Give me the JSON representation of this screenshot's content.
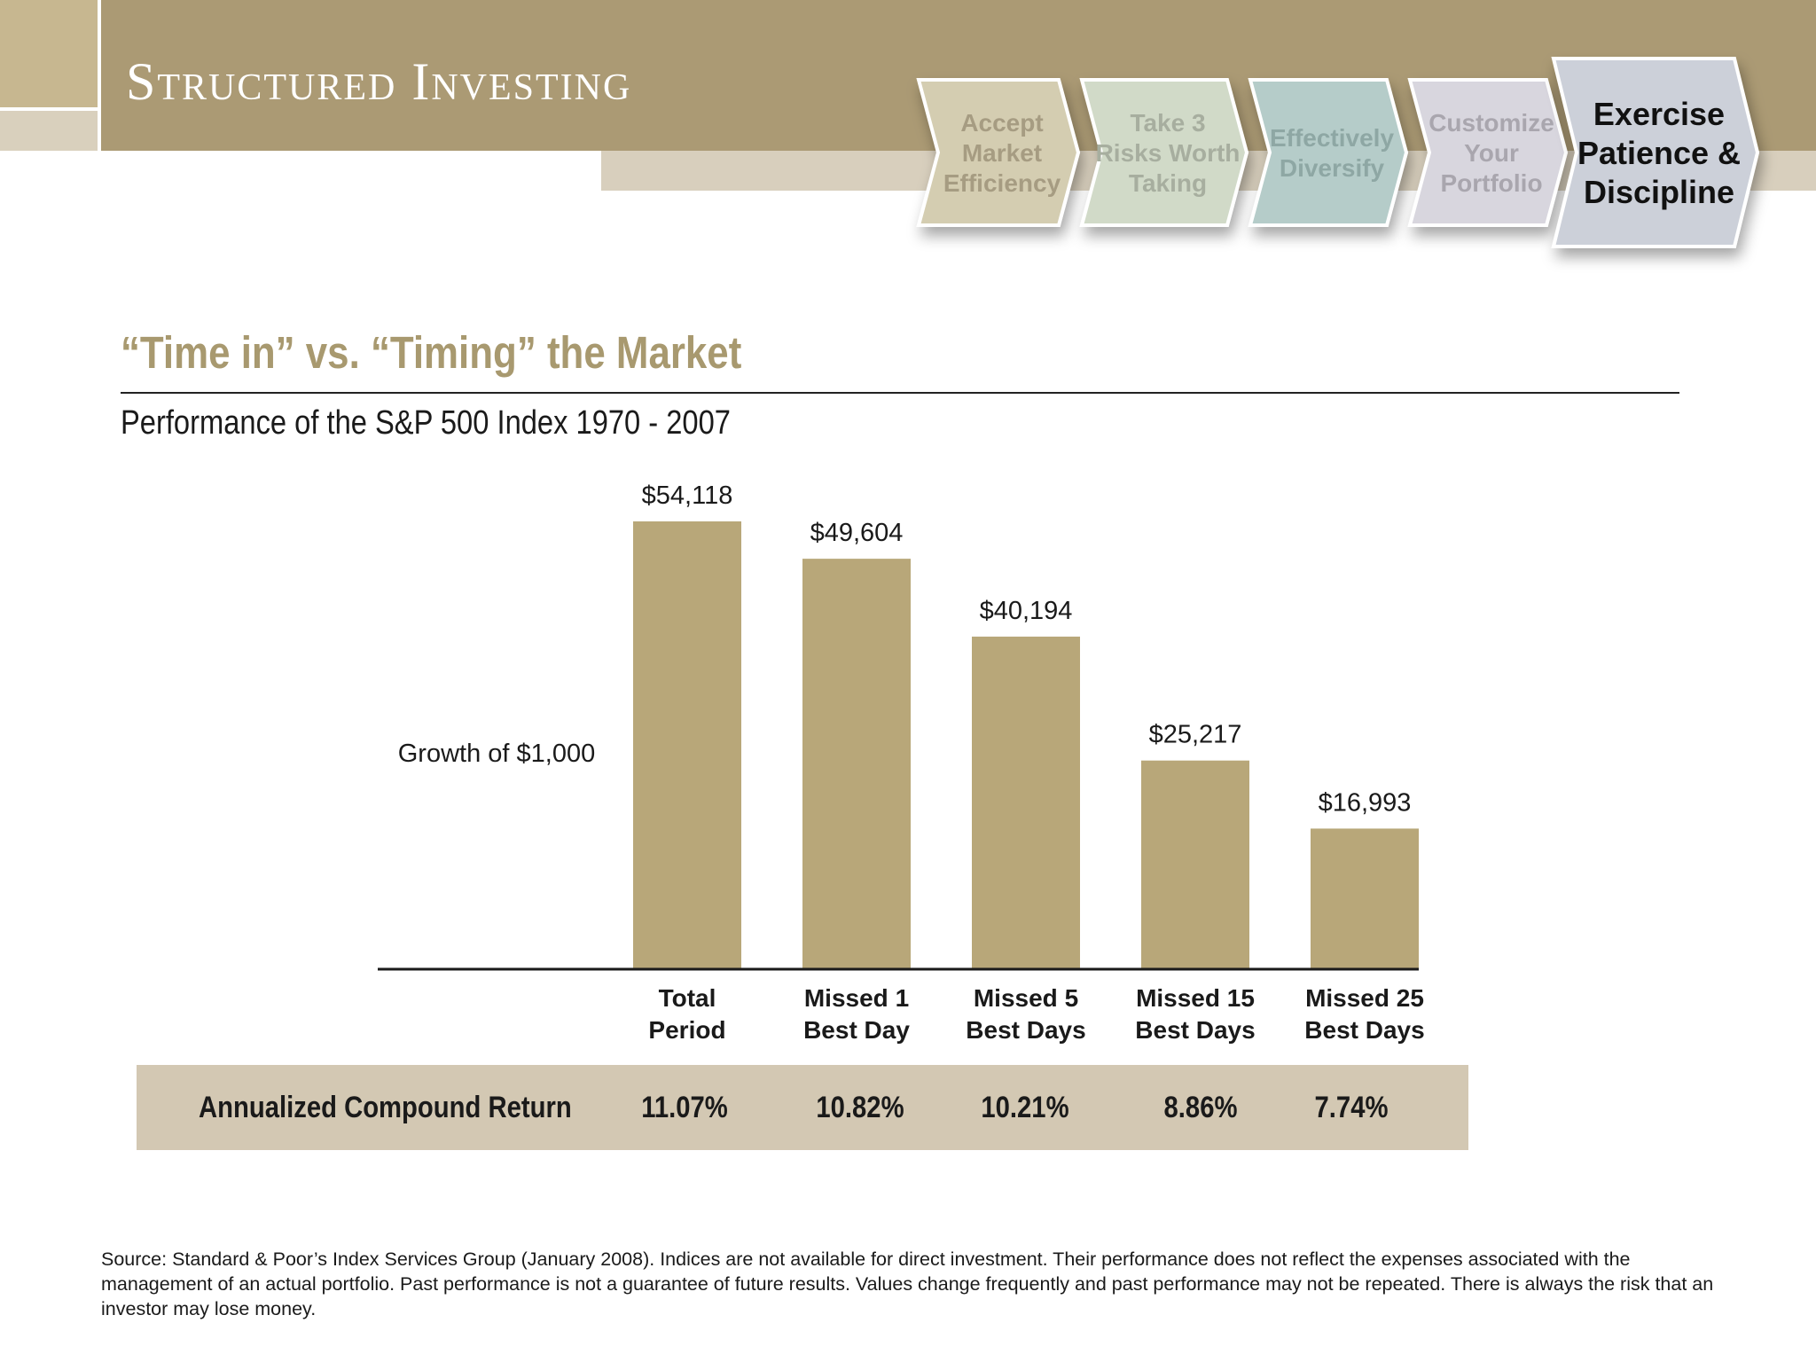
{
  "header": {
    "brand": "Structured Investing",
    "steps": [
      {
        "lines": [
          "Accept",
          "Market",
          "Efficiency"
        ],
        "fill": "#d4cdb1",
        "text_color": "#a69c82",
        "active": false
      },
      {
        "lines": [
          "Take 3",
          "Risks Worth",
          "Taking"
        ],
        "fill": "#d1dac8",
        "text_color": "#a7ae9f",
        "active": false
      },
      {
        "lines": [
          "Effectively",
          "Diversify"
        ],
        "fill": "#b5ccc9",
        "text_color": "#8ea7a4",
        "active": false
      },
      {
        "lines": [
          "Customize",
          "Your",
          "Portfolio"
        ],
        "fill": "#d8d6de",
        "text_color": "#a9a6ae",
        "active": false
      },
      {
        "lines": [
          "Exercise",
          "Patience &",
          "Discipline"
        ],
        "fill": "#ccd0d9",
        "text_color": "#111111",
        "active": true
      }
    ]
  },
  "slide": {
    "title": "“Time in” vs. “Timing” the Market",
    "subtitle": "Performance of the S&P 500 Index 1970 - 2007"
  },
  "chart_data": {
    "type": "bar",
    "categories": [
      "Total Period",
      "Missed 1 Best Day",
      "Missed 5 Best Days",
      "Missed 15 Best Days",
      "Missed 25 Best Days"
    ],
    "category_lines": [
      [
        "Total",
        "Period"
      ],
      [
        "Missed 1",
        "Best Day"
      ],
      [
        "Missed 5",
        "Best Days"
      ],
      [
        "Missed 15",
        "Best Days"
      ],
      [
        "Missed 25",
        "Best Days"
      ]
    ],
    "values": [
      54118,
      49604,
      40194,
      25217,
      16993
    ],
    "value_labels": [
      "$54,118",
      "$49,604",
      "$40,194",
      "$25,217",
      "$16,993"
    ],
    "ylabel": "Growth of $1,000",
    "ylim": [
      0,
      54118
    ],
    "grid": false,
    "bar_color": "#b8a779"
  },
  "returns": {
    "label": "Annualized Compound Return",
    "values": [
      "11.07%",
      "10.82%",
      "10.21%",
      "8.86%",
      "7.74%"
    ]
  },
  "footer": {
    "source": "Source: Standard & Poor’s Index Services Group (January 2008). Indices are not available for direct investment. Their performance does not reflect the expenses associated with the management of an actual portfolio. Past performance is not a guarantee of future results. Values change frequently and past performance may not be repeated. There is always the risk that an investor may lose money."
  },
  "colors": {
    "header_band": "#ab9a74",
    "header_strip": "#d8cfbd",
    "title": "#a8996f",
    "returns_band": "#d3c8b3"
  }
}
